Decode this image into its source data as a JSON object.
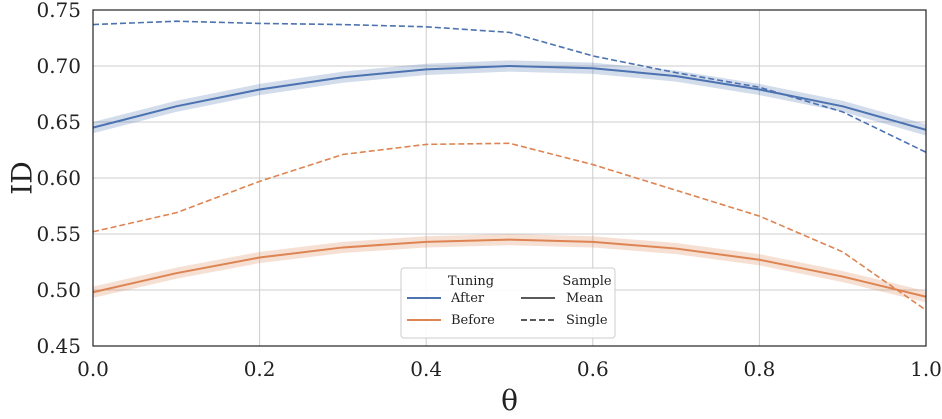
{
  "chart_data": {
    "type": "line",
    "xlabel": "θ",
    "ylabel": "ID",
    "xlim": [
      0.0,
      1.0
    ],
    "ylim": [
      0.45,
      0.75
    ],
    "x_ticks": [
      "0.0",
      "0.2",
      "0.4",
      "0.6",
      "0.8",
      "1.0"
    ],
    "y_ticks": [
      "0.45",
      "0.50",
      "0.55",
      "0.60",
      "0.65",
      "0.70",
      "0.75"
    ],
    "grid": true,
    "x": [
      0.0,
      0.1,
      0.2,
      0.3,
      0.4,
      0.5,
      0.6,
      0.7,
      0.8,
      0.9,
      1.0
    ],
    "series": [
      {
        "name": "After Mean",
        "tuning": "After",
        "sample": "Mean",
        "style": "solid",
        "color": "#4c72b0",
        "band": 0.005,
        "values": [
          0.645,
          0.664,
          0.679,
          0.69,
          0.697,
          0.7,
          0.698,
          0.691,
          0.679,
          0.664,
          0.643
        ]
      },
      {
        "name": "After Single",
        "tuning": "After",
        "sample": "Single",
        "style": "dashed",
        "color": "#4c72b0",
        "values": [
          0.737,
          0.74,
          0.738,
          0.737,
          0.735,
          0.73,
          0.709,
          0.694,
          0.681,
          0.659,
          0.623
        ]
      },
      {
        "name": "Before Mean",
        "tuning": "Before",
        "sample": "Mean",
        "style": "solid",
        "color": "#dd8452",
        "band": 0.005,
        "values": [
          0.498,
          0.515,
          0.529,
          0.538,
          0.543,
          0.545,
          0.543,
          0.537,
          0.527,
          0.512,
          0.494
        ]
      },
      {
        "name": "Before Single",
        "tuning": "Before",
        "sample": "Single",
        "style": "dashed",
        "color": "#dd8452",
        "values": [
          0.552,
          0.569,
          0.597,
          0.621,
          0.63,
          0.631,
          0.612,
          0.589,
          0.566,
          0.534,
          0.482
        ]
      }
    ],
    "legend": {
      "placement": "bottom-center",
      "tuning_title": "Tuning",
      "sample_title": "Sample",
      "tuning_entries": [
        {
          "label": "After",
          "color": "#4c72b0"
        },
        {
          "label": "Before",
          "color": "#dd8452"
        }
      ],
      "sample_entries": [
        {
          "label": "Mean",
          "style": "solid"
        },
        {
          "label": "Single",
          "style": "dashed"
        }
      ]
    }
  }
}
